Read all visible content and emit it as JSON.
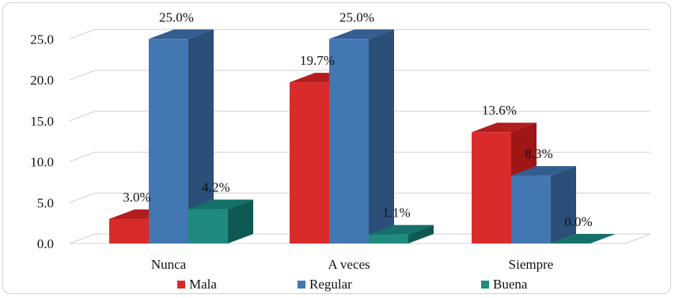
{
  "chart_data": {
    "type": "bar",
    "categories": [
      "Nunca",
      "A veces",
      "Siempre"
    ],
    "series": [
      {
        "name": "Mala",
        "values": [
          3.0,
          19.7,
          13.6
        ],
        "labels": [
          "3.0%",
          "19.7%",
          "13.6%"
        ],
        "color": "#d92b2b",
        "side_color": "#9e1616",
        "top_color": "#b31d1d"
      },
      {
        "name": "Regular",
        "values": [
          25.0,
          25.0,
          8.3
        ],
        "labels": [
          "25.0%",
          "25.0%",
          "8.3%"
        ],
        "color": "#4277b3",
        "side_color": "#2a4f78",
        "top_color": "#335f90"
      },
      {
        "name": "Buena",
        "values": [
          4.2,
          1.1,
          0.0
        ],
        "labels": [
          "4.2%",
          "1.1%",
          "0.0%"
        ],
        "color": "#1f8a7e",
        "side_color": "#0e5a52",
        "top_color": "#15706a"
      }
    ],
    "y_ticks": [
      "0.0",
      "5.0",
      "10.0",
      "15.0",
      "20.0",
      "25.0"
    ],
    "ylim": [
      0,
      25
    ],
    "grid": true,
    "legend_position": "bottom"
  }
}
